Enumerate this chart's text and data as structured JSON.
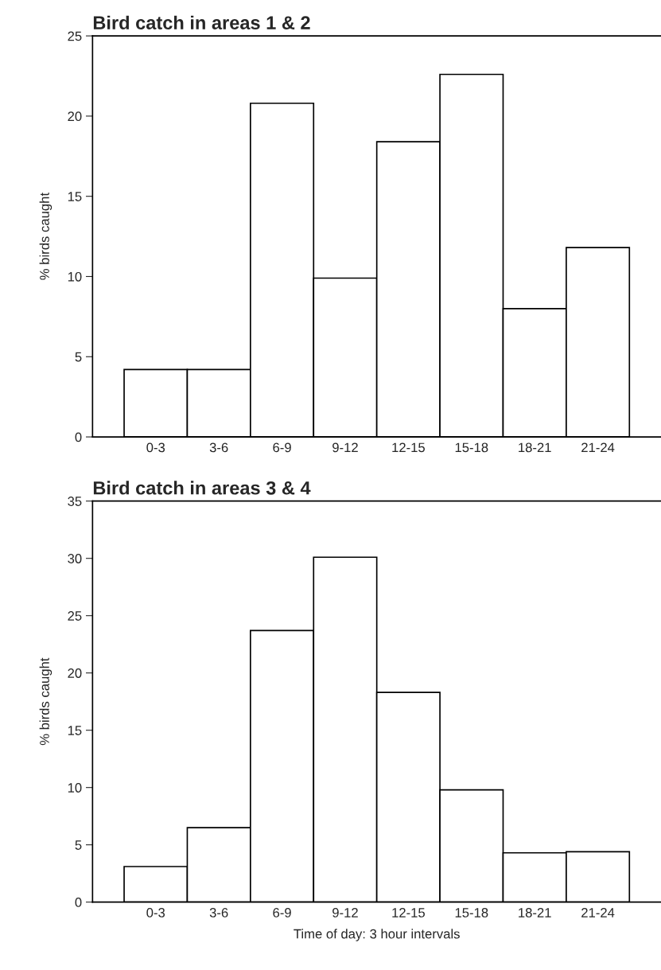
{
  "chart_data": [
    {
      "type": "bar",
      "title": "Bird catch in areas 1 & 2",
      "ylabel": "% birds caught",
      "categories": [
        "0-3",
        "3-6",
        "6-9",
        "9-12",
        "12-15",
        "15-18",
        "18-21",
        "21-24"
      ],
      "values": [
        4.2,
        4.2,
        20.8,
        9.9,
        18.4,
        22.6,
        8.0,
        11.8
      ],
      "color": "#ffffff",
      "ylim": [
        0,
        25
      ],
      "yticks": [
        0,
        5,
        10,
        15,
        20,
        25
      ],
      "grid": false
    },
    {
      "type": "bar",
      "title": "Bird catch in areas 3 & 4",
      "ylabel": "% birds caught",
      "xlabel": "Time of day: 3 hour intervals",
      "categories": [
        "0-3",
        "3-6",
        "6-9",
        "9-12",
        "12-15",
        "15-18",
        "18-21",
        "21-24"
      ],
      "values": [
        3.1,
        6.5,
        23.7,
        30.1,
        18.3,
        9.8,
        4.3,
        4.4
      ],
      "color": "#ffffff",
      "ylim": [
        0,
        35
      ],
      "yticks": [
        0,
        5,
        10,
        15,
        20,
        25,
        30,
        35
      ],
      "grid": false
    }
  ]
}
